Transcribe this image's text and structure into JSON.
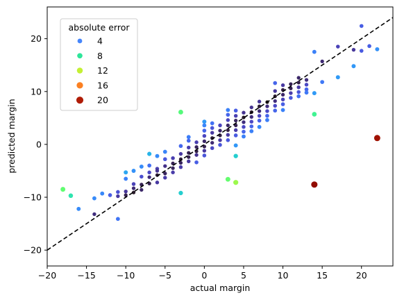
{
  "chart_data": {
    "type": "scatter",
    "title": "",
    "xlabel": "actual margin",
    "ylabel": "predicted margin",
    "xlim": [
      -20,
      24
    ],
    "ylim": [
      -23,
      26
    ],
    "xticks": [
      -20,
      -15,
      -10,
      -5,
      0,
      5,
      10,
      15,
      20
    ],
    "yticks": [
      -20,
      -10,
      0,
      10,
      20
    ],
    "grid": false,
    "reference_line": {
      "style": "dashed",
      "color": "#000000",
      "slope": 1,
      "intercept": 0
    },
    "legend": {
      "title": "absolute error",
      "placement": "top-left",
      "entries": [
        {
          "label": "4",
          "value": 4,
          "color": "#4686fb"
        },
        {
          "label": "8",
          "value": 8,
          "color": "#2ee59a"
        },
        {
          "label": "12",
          "value": 12,
          "color": "#c4f034"
        },
        {
          "label": "16",
          "value": 16,
          "color": "#fb8022"
        },
        {
          "label": "20",
          "value": 20,
          "color": "#b01c06"
        }
      ]
    },
    "color_scale": "turbo",
    "color_range": [
      0,
      22
    ],
    "points": [
      [
        -18,
        -8.5,
        9.5
      ],
      [
        -17,
        -9.7,
        7.3
      ],
      [
        -16,
        -12.2,
        3.8
      ],
      [
        -14,
        -13.2,
        0.8
      ],
      [
        -14,
        -10.2,
        3.8
      ],
      [
        -13,
        -9.3,
        3.7
      ],
      [
        -12,
        -9.6,
        2.4
      ],
      [
        -11,
        -14.1,
        3.1
      ],
      [
        -11,
        -9.0,
        2.0
      ],
      [
        -11,
        -9.8,
        1.2
      ],
      [
        -10,
        -5.3,
        4.7
      ],
      [
        -10,
        -6.5,
        3.5
      ],
      [
        -10,
        -8.9,
        1.1
      ],
      [
        -10,
        -9.6,
        0.4
      ],
      [
        -9,
        -7.5,
        1.5
      ],
      [
        -9,
        -5.0,
        4.0
      ],
      [
        -9,
        -8.3,
        0.7
      ],
      [
        -9,
        -9.1,
        0.1
      ],
      [
        -8,
        -4.2,
        3.8
      ],
      [
        -8,
        -6.1,
        1.9
      ],
      [
        -8,
        -7.6,
        0.4
      ],
      [
        -8,
        -8.6,
        0.6
      ],
      [
        -7,
        -1.8,
        5.2
      ],
      [
        -7,
        -4.0,
        3.0
      ],
      [
        -7,
        -5.3,
        1.7
      ],
      [
        -7,
        -6.2,
        0.8
      ],
      [
        -7,
        -7.4,
        0.4
      ],
      [
        -6,
        -2.2,
        3.8
      ],
      [
        -6,
        -4.6,
        1.4
      ],
      [
        -6,
        -5.0,
        1.0
      ],
      [
        -6,
        -5.8,
        0.2
      ],
      [
        -6,
        -7.2,
        1.2
      ],
      [
        -5,
        -1.4,
        3.6
      ],
      [
        -5,
        -2.8,
        2.2
      ],
      [
        -5,
        -4.1,
        0.9
      ],
      [
        -5,
        -5.5,
        0.5
      ],
      [
        -5,
        -6.3,
        1.3
      ],
      [
        -4,
        -2.6,
        1.4
      ],
      [
        -4,
        -3.6,
        0.4
      ],
      [
        -4,
        -4.5,
        0.5
      ],
      [
        -4,
        -5.3,
        1.3
      ],
      [
        -3,
        6.1,
        9.1
      ],
      [
        -3,
        -9.2,
        6.2
      ],
      [
        -3,
        -0.3,
        2.7
      ],
      [
        -3,
        -1.8,
        1.2
      ],
      [
        -3,
        -2.8,
        0.2
      ],
      [
        -3,
        -3.5,
        0.5
      ],
      [
        -3,
        -4.3,
        1.3
      ],
      [
        -2,
        1.4,
        3.4
      ],
      [
        -2,
        0.7,
        2.7
      ],
      [
        -2,
        -0.6,
        1.4
      ],
      [
        -2,
        -1.6,
        0.4
      ],
      [
        -2,
        -2.4,
        0.4
      ],
      [
        -2,
        -3.2,
        1.2
      ],
      [
        -1,
        0.4,
        1.4
      ],
      [
        -1,
        -0.5,
        0.5
      ],
      [
        -1,
        -1.3,
        0.3
      ],
      [
        -1,
        -2.0,
        1.0
      ],
      [
        -1,
        -3.4,
        2.4
      ],
      [
        0,
        4.3,
        4.3
      ],
      [
        0,
        3.6,
        3.6
      ],
      [
        0,
        2.6,
        2.6
      ],
      [
        0,
        1.6,
        1.6
      ],
      [
        0,
        0.6,
        0.6
      ],
      [
        0,
        -0.4,
        0.4
      ],
      [
        0,
        -1.2,
        1.2
      ],
      [
        0,
        -2.1,
        2.1
      ],
      [
        1,
        4.0,
        3.0
      ],
      [
        1,
        3.1,
        2.1
      ],
      [
        1,
        2.2,
        1.2
      ],
      [
        1,
        1.2,
        0.2
      ],
      [
        1,
        0.3,
        0.7
      ],
      [
        1,
        -0.7,
        1.7
      ],
      [
        2,
        3.6,
        1.6
      ],
      [
        2,
        2.6,
        0.6
      ],
      [
        2,
        1.7,
        0.3
      ],
      [
        2,
        0.8,
        1.2
      ],
      [
        2,
        -0.1,
        2.1
      ],
      [
        3,
        6.5,
        3.5
      ],
      [
        3,
        5.6,
        2.6
      ],
      [
        3,
        -6.6,
        9.6
      ],
      [
        3,
        4.6,
        1.6
      ],
      [
        3,
        3.6,
        0.6
      ],
      [
        3,
        2.7,
        0.3
      ],
      [
        3,
        1.8,
        1.2
      ],
      [
        3,
        0.8,
        2.2
      ],
      [
        4,
        6.4,
        2.4
      ],
      [
        4,
        -2.2,
        6.2
      ],
      [
        4,
        -7.2,
        11.2
      ],
      [
        4,
        5.4,
        1.4
      ],
      [
        4,
        4.5,
        0.5
      ],
      [
        4,
        3.6,
        0.4
      ],
      [
        4,
        2.7,
        1.3
      ],
      [
        4,
        1.7,
        2.3
      ],
      [
        4,
        -0.2,
        4.2
      ],
      [
        5,
        6.0,
        1.0
      ],
      [
        5,
        5.1,
        0.1
      ],
      [
        5,
        4.2,
        0.8
      ],
      [
        5,
        3.3,
        1.7
      ],
      [
        5,
        2.4,
        2.6
      ],
      [
        5,
        1.5,
        3.5
      ],
      [
        6,
        7.0,
        1.0
      ],
      [
        6,
        6.1,
        0.1
      ],
      [
        6,
        5.2,
        0.8
      ],
      [
        6,
        4.3,
        1.7
      ],
      [
        6,
        3.4,
        2.6
      ],
      [
        6,
        2.5,
        3.5
      ],
      [
        7,
        8.1,
        1.1
      ],
      [
        7,
        7.2,
        0.2
      ],
      [
        7,
        6.3,
        0.7
      ],
      [
        7,
        5.4,
        1.6
      ],
      [
        7,
        4.5,
        2.5
      ],
      [
        7,
        3.3,
        3.7
      ],
      [
        8,
        8.0,
        0.0
      ],
      [
        8,
        7.2,
        0.8
      ],
      [
        8,
        6.3,
        1.7
      ],
      [
        8,
        5.4,
        2.6
      ],
      [
        8,
        4.6,
        3.4
      ],
      [
        9,
        11.6,
        2.6
      ],
      [
        9,
        10.1,
        1.1
      ],
      [
        9,
        9.1,
        0.1
      ],
      [
        9,
        8.2,
        0.8
      ],
      [
        9,
        7.3,
        1.7
      ],
      [
        9,
        6.4,
        2.6
      ],
      [
        10,
        11.2,
        1.2
      ],
      [
        10,
        10.3,
        0.3
      ],
      [
        10,
        9.4,
        0.6
      ],
      [
        10,
        8.5,
        1.5
      ],
      [
        10,
        7.6,
        2.4
      ],
      [
        10,
        6.5,
        3.5
      ],
      [
        11,
        11.4,
        0.4
      ],
      [
        11,
        10.6,
        0.4
      ],
      [
        11,
        9.7,
        1.3
      ],
      [
        11,
        8.8,
        2.2
      ],
      [
        12,
        12.6,
        0.6
      ],
      [
        12,
        11.7,
        0.3
      ],
      [
        12,
        10.8,
        1.2
      ],
      [
        12,
        9.9,
        2.1
      ],
      [
        12,
        9.1,
        2.9
      ],
      [
        13,
        12.2,
        0.8
      ],
      [
        13,
        11.3,
        1.7
      ],
      [
        13,
        10.4,
        2.6
      ],
      [
        13,
        9.8,
        3.2
      ],
      [
        14,
        17.5,
        3.5
      ],
      [
        14,
        5.7,
        8.3
      ],
      [
        14,
        -7.6,
        21.6
      ],
      [
        14,
        9.7,
        4.3
      ],
      [
        15,
        15.7,
        0.7
      ],
      [
        15,
        11.8,
        3.2
      ],
      [
        17,
        18.5,
        1.5
      ],
      [
        17,
        12.7,
        4.3
      ],
      [
        19,
        17.9,
        1.1
      ],
      [
        19,
        14.8,
        4.2
      ],
      [
        20,
        22.4,
        2.4
      ],
      [
        20,
        17.7,
        2.3
      ],
      [
        21,
        18.6,
        2.4
      ],
      [
        22,
        18.0,
        4.0
      ],
      [
        22,
        1.2,
        20.8
      ]
    ]
  }
}
